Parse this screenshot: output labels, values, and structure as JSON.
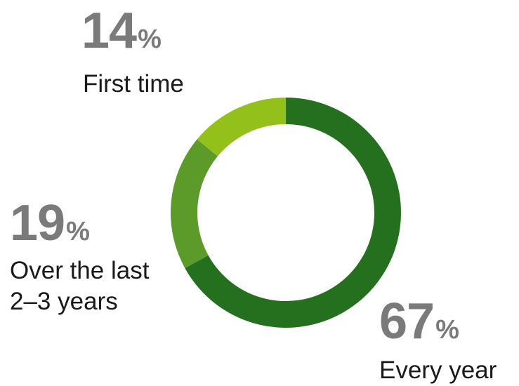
{
  "chart_data": {
    "type": "pie",
    "donut": true,
    "categories": [
      "Every year",
      "Over the last\n2–3 years",
      "First time"
    ],
    "values": [
      67,
      19,
      14
    ],
    "value_labels": [
      "67",
      "19",
      "14"
    ],
    "unit": "%",
    "colors": [
      "#24701e",
      "#5c9a2a",
      "#93c01a"
    ],
    "title": "",
    "legend": "none"
  }
}
